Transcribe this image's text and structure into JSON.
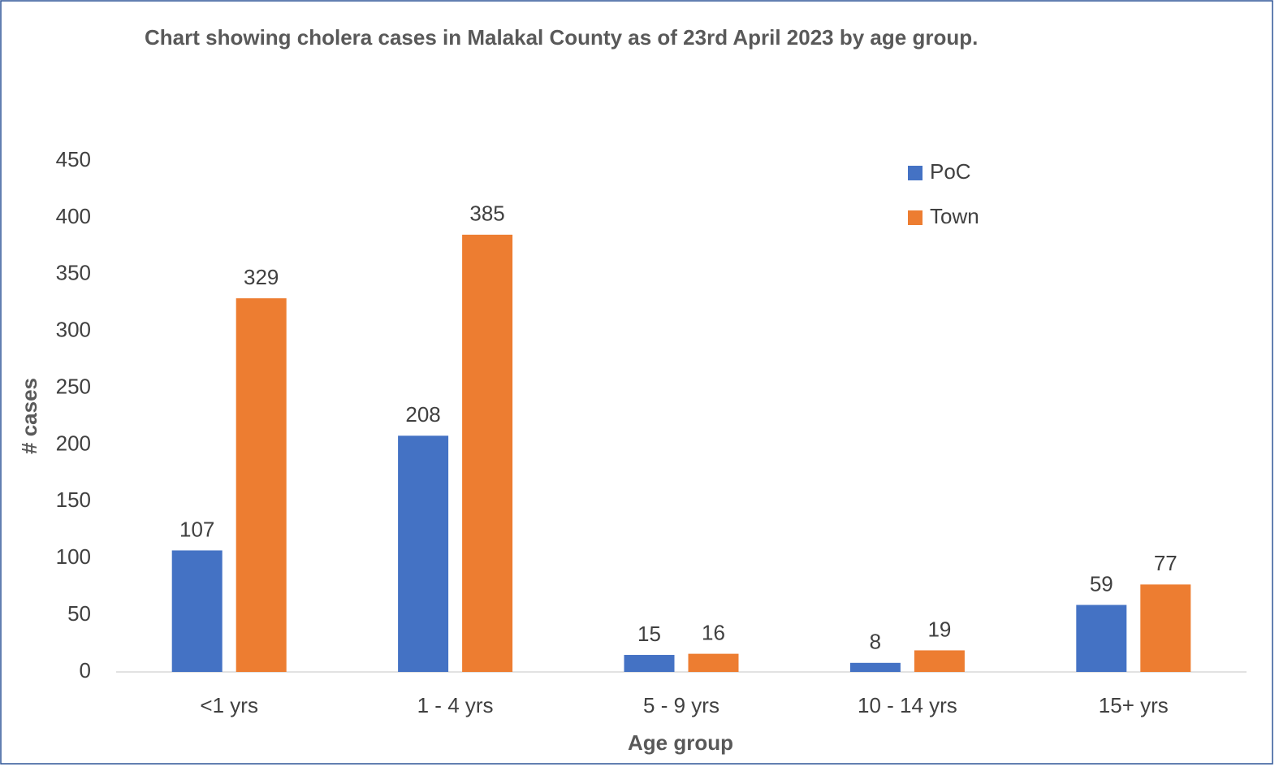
{
  "chart_data": {
    "type": "bar",
    "title": "Chart showing cholera cases in Malakal County as of 23rd April 2023 by age group.",
    "x_label": "Age group",
    "y_label": "# cases",
    "categories": [
      "<1 yrs",
      "1 - 4 yrs",
      "5 - 9 yrs",
      "10 - 14 yrs",
      "15+ yrs"
    ],
    "series": [
      {
        "name": "PoC",
        "color": "#4472c4",
        "values": [
          107,
          208,
          15,
          8,
          59
        ]
      },
      {
        "name": "Town",
        "color": "#ed7d31",
        "values": [
          329,
          385,
          16,
          19,
          77
        ]
      }
    ],
    "ylim": [
      0,
      450
    ],
    "yticks": [
      0,
      50,
      100,
      150,
      200,
      250,
      300,
      350,
      400,
      450
    ],
    "grid": false,
    "legend": "upper right"
  }
}
